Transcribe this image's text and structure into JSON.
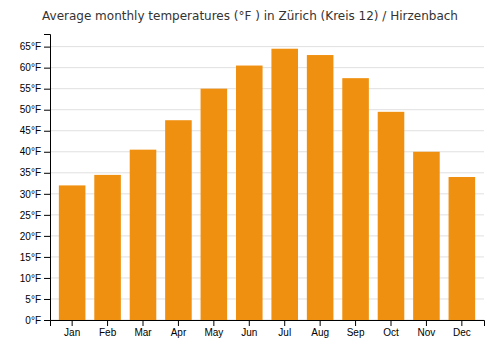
{
  "chart_data": {
    "type": "bar",
    "title": "Average monthly temperatures (°F ) in Zürich (Kreis 12) / Hirzenbach",
    "categories": [
      "Jan",
      "Feb",
      "Mar",
      "Apr",
      "May",
      "Jun",
      "Jul",
      "Aug",
      "Sep",
      "Oct",
      "Nov",
      "Dec"
    ],
    "values": [
      32,
      34.5,
      40.5,
      47.5,
      55,
      60.5,
      64.5,
      63,
      57.5,
      49.5,
      40,
      34
    ],
    "color": "#F09010",
    "ylim": [
      0,
      68
    ],
    "yticks": [
      {
        "value": 0,
        "label": "0°F"
      },
      {
        "value": 5,
        "label": "5°F"
      },
      {
        "value": 10,
        "label": "10°F"
      },
      {
        "value": 15,
        "label": "15°F"
      },
      {
        "value": 20,
        "label": "20°F"
      },
      {
        "value": 25,
        "label": "25°F"
      },
      {
        "value": 30,
        "label": "30°F"
      },
      {
        "value": 35,
        "label": "35°F"
      },
      {
        "value": 40,
        "label": "40°F"
      },
      {
        "value": 45,
        "label": "45°F"
      },
      {
        "value": 50,
        "label": "50°F"
      },
      {
        "value": 55,
        "label": "55°F"
      },
      {
        "value": 60,
        "label": "60°F"
      },
      {
        "value": 65,
        "label": "65°F"
      }
    ],
    "grid": true
  }
}
